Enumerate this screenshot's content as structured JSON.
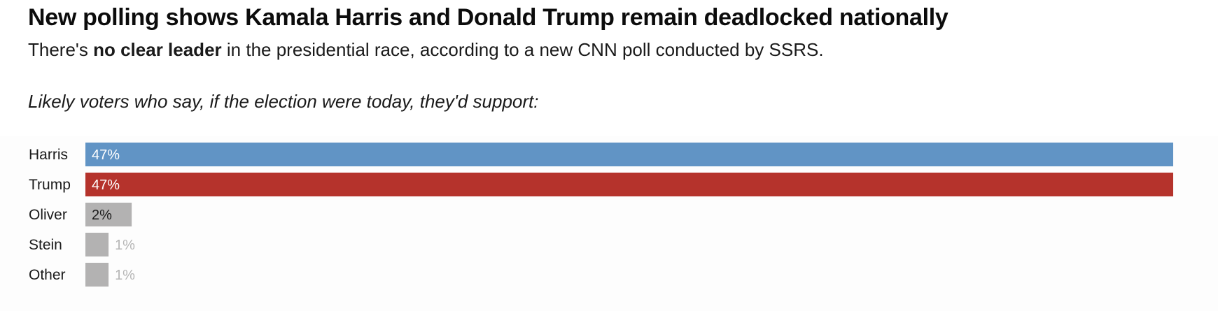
{
  "header": {
    "headline": "New polling shows Kamala Harris and Donald Trump remain deadlocked nationally",
    "dek_before": "There's ",
    "dek_bold": "no clear leader",
    "dek_after": " in the presidential race, according to a new CNN poll conducted by SSRS.",
    "question": "Likely voters who say, if the election were today, they'd support:"
  },
  "colors": {
    "harris": "#6194c5",
    "trump": "#b5332c",
    "other": "#b3b2b2",
    "label_inside": "#ffffff",
    "label_dark": "#1a1a1a",
    "label_outside": "#b5b5b5"
  },
  "chart_data": {
    "type": "bar",
    "orientation": "horizontal",
    "categories": [
      "Harris",
      "Trump",
      "Oliver",
      "Stein",
      "Other"
    ],
    "values": [
      47,
      47,
      2,
      1,
      1
    ],
    "value_labels": [
      "47%",
      "47%",
      "2%",
      "1%",
      "1%"
    ],
    "bar_colors": [
      "#6194c5",
      "#b5332c",
      "#b3b2b2",
      "#b3b2b2",
      "#b3b2b2"
    ],
    "title": "New polling shows Kamala Harris and Donald Trump remain deadlocked nationally",
    "subtitle": "Likely voters who say, if the election were today, they'd support:",
    "xlabel": "",
    "ylabel": "",
    "xlim": [
      0,
      47
    ],
    "grid": false,
    "legend": "none"
  }
}
